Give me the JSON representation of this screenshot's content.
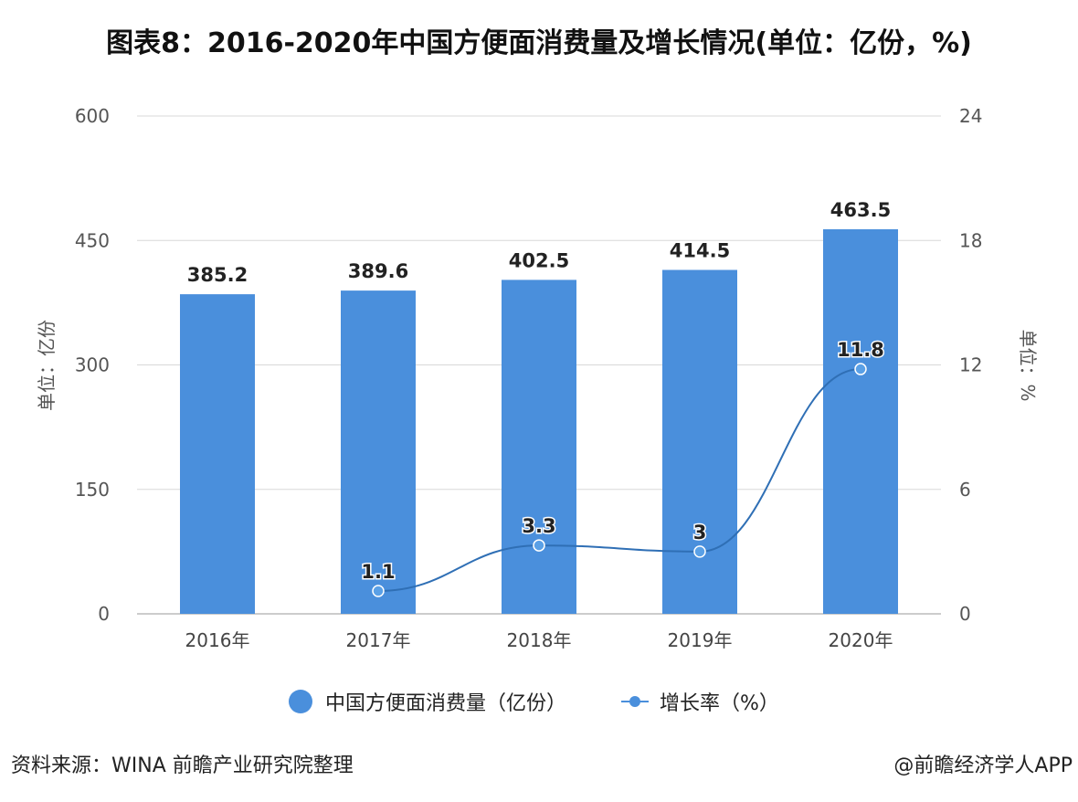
{
  "chart_data": {
    "type": "bar+line",
    "title": "图表8：2016-2020年中国方便面消费量及增长情况(单位：亿份，%)",
    "categories": [
      "2016年",
      "2017年",
      "2018年",
      "2019年",
      "2020年"
    ],
    "series": [
      {
        "name": "中国方便面消费量（亿份）",
        "type": "bar",
        "axis": "left",
        "values": [
          385.2,
          389.6,
          402.5,
          414.5,
          463.5
        ],
        "color": "#4a8fdc"
      },
      {
        "name": "增长率（%）",
        "type": "line",
        "axis": "right",
        "values": [
          null,
          1.1,
          3.3,
          3,
          11.8
        ],
        "color": "#4a8fdc"
      }
    ],
    "ylabel": "单位：亿份",
    "y2label": "单位：%",
    "ylim": [
      0,
      600
    ],
    "y2lim": [
      0,
      24
    ],
    "yticks": [
      "0",
      "150",
      "300",
      "450",
      "600"
    ],
    "y2ticks": [
      "0",
      "6",
      "12",
      "18",
      "24"
    ],
    "grid": true,
    "legend": "bottom"
  },
  "footer": {
    "source": "资料来源：WINA 前瞻产业研究院整理",
    "credit": "@前瞻经济学人APP"
  }
}
